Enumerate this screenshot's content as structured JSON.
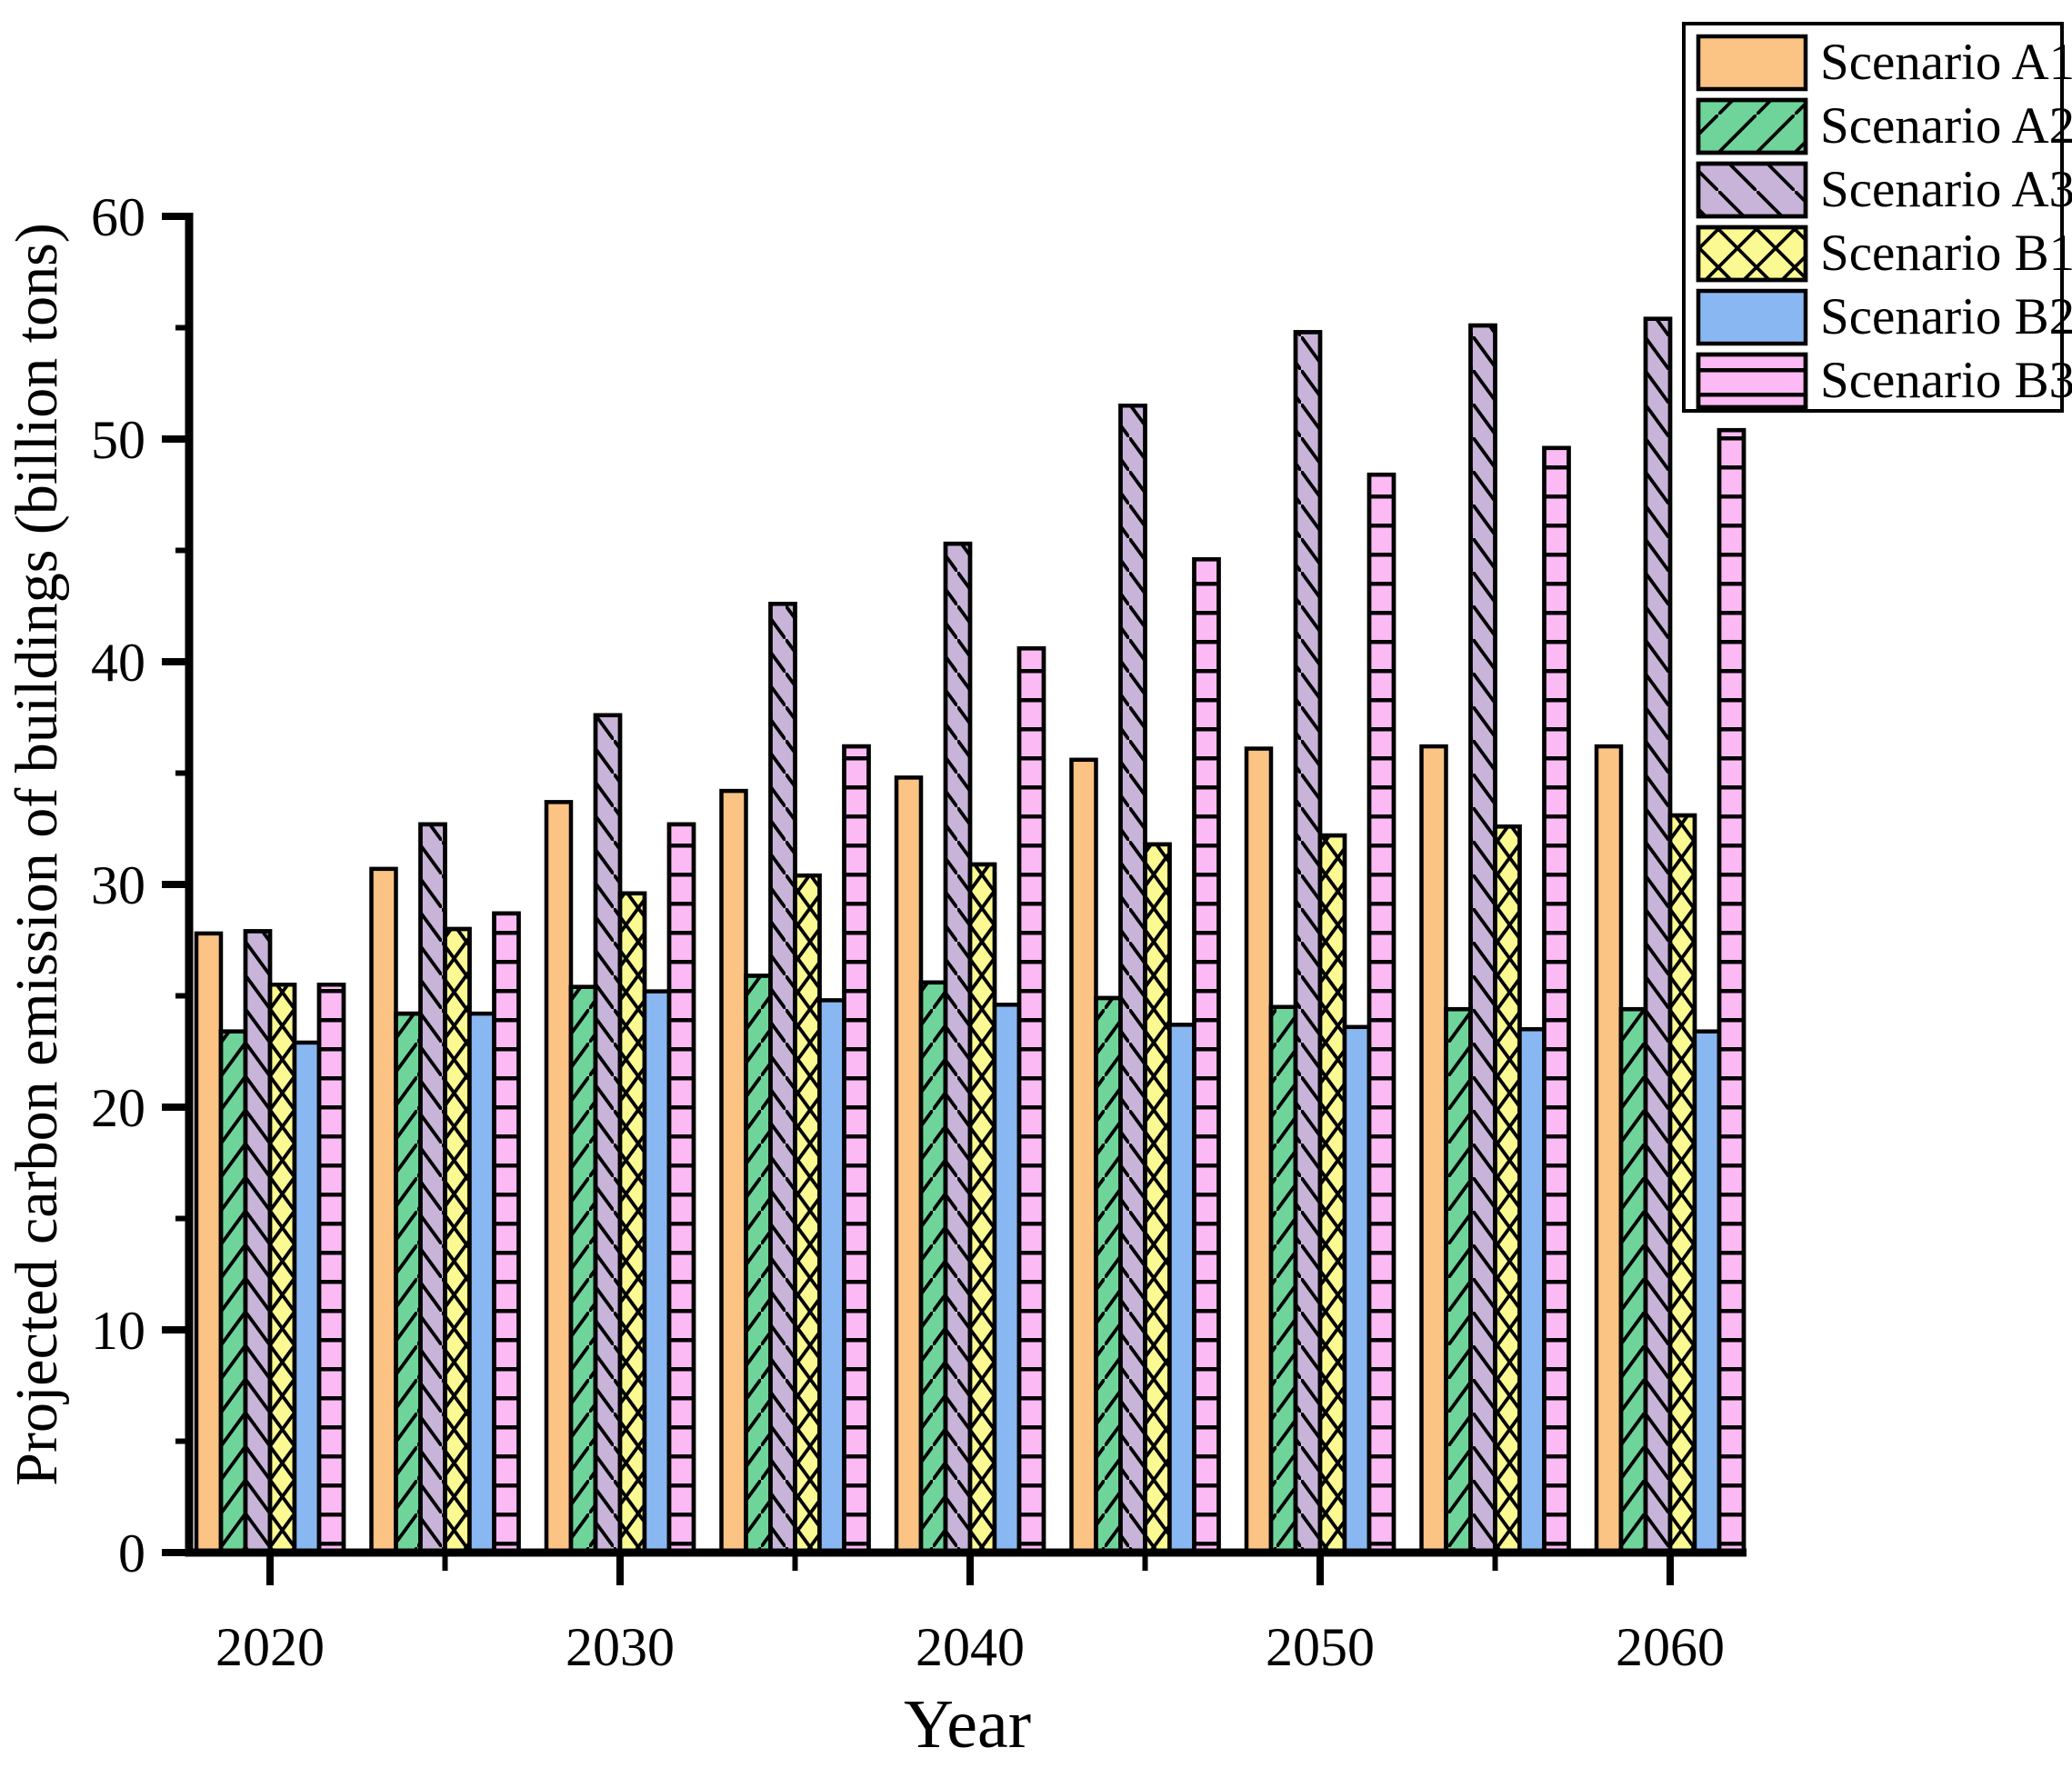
{
  "chart_data": {
    "type": "bar",
    "title": "",
    "xlabel": "Year",
    "ylabel": "Projected carbon emission of buildings (billion tons)",
    "ylim": [
      0,
      60
    ],
    "yticks_major": [
      0,
      10,
      20,
      30,
      40,
      50,
      60
    ],
    "yticks_minor": [
      5,
      15,
      25,
      35,
      45,
      55
    ],
    "x_years": [
      2020,
      2025,
      2030,
      2035,
      2040,
      2045,
      2050,
      2055,
      2060
    ],
    "xticks_labeled": [
      2020,
      2030,
      2040,
      2050,
      2060
    ],
    "xticks_minor": [
      2025,
      2035,
      2045,
      2055
    ],
    "grid": false,
    "legend_position": "top-right",
    "axis_color": "#000000",
    "background_color": "#ffffff",
    "series": [
      {
        "name": "Scenario A1",
        "color": "#FBC384",
        "hatch": "none",
        "values": [
          27.8,
          30.7,
          33.7,
          34.2,
          34.8,
          35.6,
          36.1,
          36.2,
          36.2
        ]
      },
      {
        "name": "Scenario A2",
        "color": "#6FD49A",
        "hatch": "diag-up",
        "values": [
          23.4,
          24.2,
          25.4,
          25.9,
          25.6,
          24.9,
          24.5,
          24.4,
          24.4
        ]
      },
      {
        "name": "Scenario A3",
        "color": "#C8B4D8",
        "hatch": "diag-down",
        "values": [
          27.9,
          32.7,
          37.6,
          42.6,
          45.3,
          51.5,
          54.8,
          55.1,
          55.4
        ]
      },
      {
        "name": "Scenario B1",
        "color": "#FAF992",
        "hatch": "cross",
        "values": [
          25.5,
          28.0,
          29.6,
          30.4,
          30.9,
          31.8,
          32.2,
          32.6,
          33.1
        ]
      },
      {
        "name": "Scenario B2",
        "color": "#89B7F1",
        "hatch": "none",
        "values": [
          22.9,
          24.2,
          25.2,
          24.8,
          24.6,
          23.7,
          23.6,
          23.5,
          23.4
        ]
      },
      {
        "name": "Scenario B3",
        "color": "#FBBAF3",
        "hatch": "horiz",
        "values": [
          25.5,
          28.7,
          32.7,
          36.2,
          40.6,
          44.6,
          48.4,
          49.6,
          50.4
        ]
      }
    ]
  }
}
